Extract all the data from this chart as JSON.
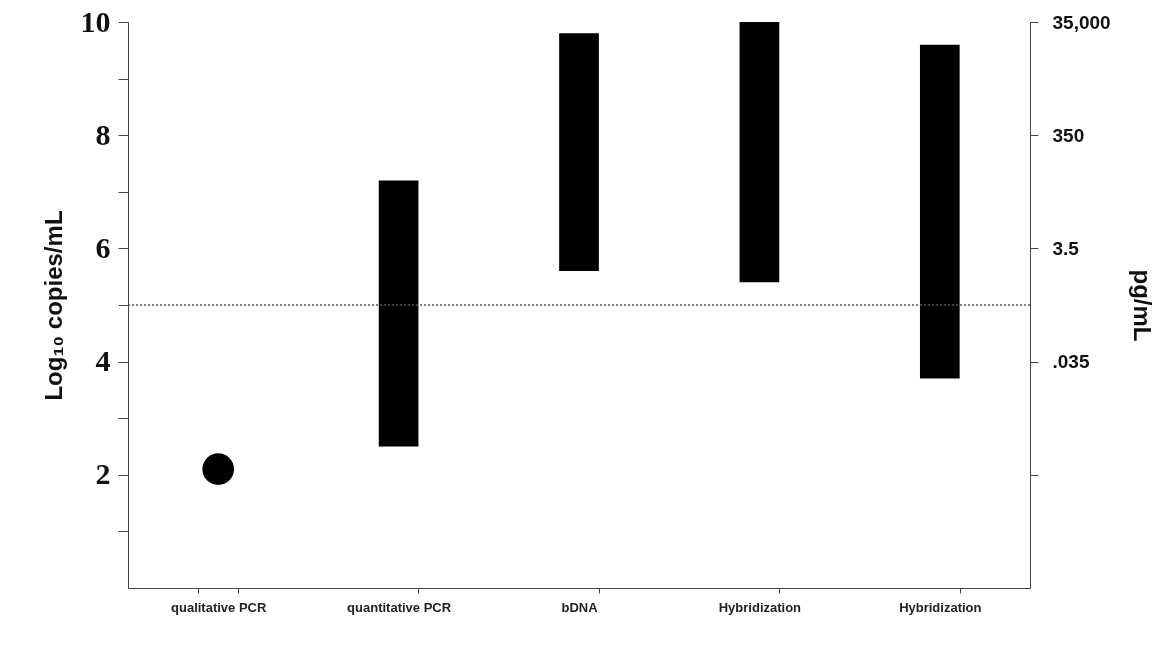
{
  "chart_data": {
    "type": "bar",
    "categories": [
      "qualitative PCR",
      "quantitative PCR",
      "bDNA",
      "Hybridization",
      "Hybridization"
    ],
    "series": [
      {
        "color": "#000000",
        "base": [
          null,
          2.5,
          5.6,
          5.4,
          3.7
        ],
        "values": [
          null,
          4.7,
          4.2,
          4.6,
          5.9
        ]
      },
      {
        "type": "scatter",
        "color": "#000000",
        "marker": "circle",
        "x": [
          "qualitative PCR"
        ],
        "values": [
          2.1
        ]
      }
    ],
    "ylabel": "Log₁₀ copies/mL",
    "y2label": "pg/mL",
    "ylim": [
      0,
      10
    ],
    "yticks": [
      {
        "value": 1,
        "label": null
      },
      2,
      {
        "value": 3,
        "label": null
      },
      4,
      {
        "value": 5,
        "label": null
      },
      6,
      {
        "value": 7,
        "label": null
      },
      8,
      {
        "value": 9,
        "label": null
      },
      10
    ],
    "log": "y2",
    "y2lim": [
      3.5e-06,
      35000
    ],
    "y2ticks": [
      {
        "value": 0.00035,
        "label": null
      },
      {
        "value": 0.035,
        "label": ".035"
      },
      3.5,
      350,
      {
        "value": 35000,
        "label": "35,000"
      }
    ],
    "ref_lines": [
      {
        "axis": "y",
        "value": 5,
        "color": "#555555",
        "line_style": "dotted"
      }
    ],
    "grid": false
  }
}
